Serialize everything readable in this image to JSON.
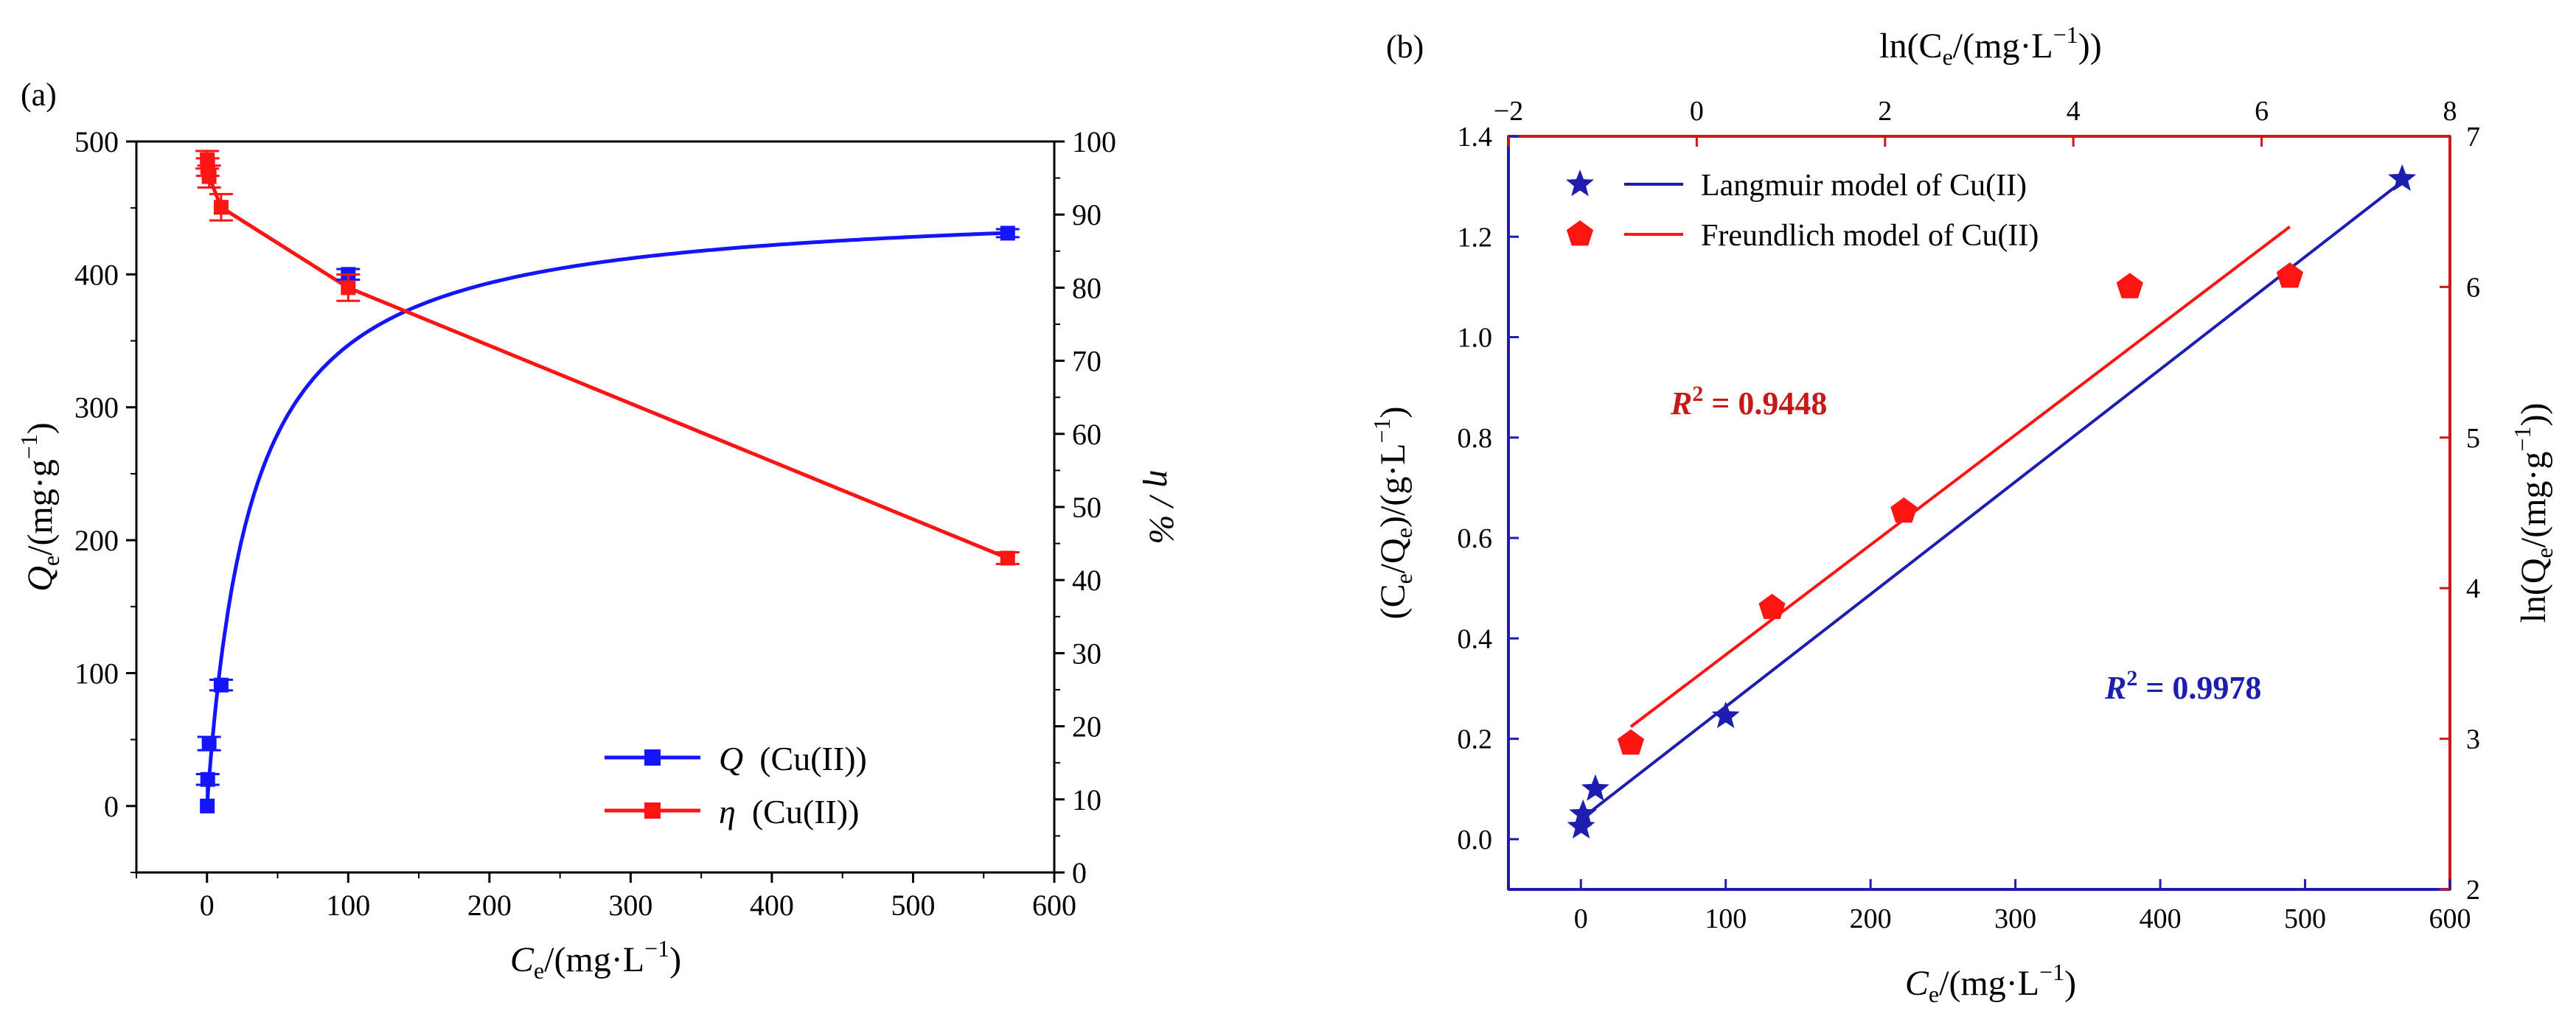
{
  "chart_data": [
    {
      "panel_label": "(a)",
      "type": "line",
      "xlabel": {
        "main": "C",
        "sub": "e",
        "rest": "/(mg·L",
        "sup": "−1",
        "close": ")"
      },
      "ylabel": {
        "main": "Q",
        "sub": "e",
        "rest": "/(mg·g",
        "sup": "−1",
        "close": ")"
      },
      "y2label": "η / %",
      "xlim": [
        -50,
        600
      ],
      "ylim": [
        -50,
        500
      ],
      "y2lim": [
        0,
        100
      ],
      "xticks": [
        "0",
        "100",
        "200",
        "300",
        "400",
        "500",
        "600"
      ],
      "yticks": [
        "0",
        "100",
        "200",
        "300",
        "400",
        "500"
      ],
      "y2ticks": [
        "0",
        "10",
        "20",
        "30",
        "40",
        "50",
        "60",
        "70",
        "80",
        "90",
        "100"
      ],
      "series": [
        {
          "name": "Q",
          "legend_symbol": "Q",
          "legend_text": "(Cu(II))",
          "axis": "left",
          "color": "#1414ff",
          "x": [
            0.2,
            0.5,
            1.5,
            10,
            100,
            567
          ],
          "y": [
            0,
            20,
            47,
            91,
            400,
            431
          ],
          "err": [
            0,
            4,
            5,
            4,
            4,
            3
          ]
        },
        {
          "name": "η",
          "legend_symbol": "η",
          "legend_text": "(Cu(II))",
          "axis": "right",
          "color": "#ff1414",
          "x": [
            0.2,
            0.5,
            1.5,
            10,
            100,
            567
          ],
          "y": [
            97.5,
            96.5,
            95.2,
            91,
            80,
            43
          ],
          "err": [
            1.2,
            1.2,
            1.5,
            1.8,
            1.8,
            0.8
          ]
        }
      ],
      "q_fit_curve": {
        "model": "Langmuir",
        "qmax": 455,
        "KL": 0.032
      }
    },
    {
      "panel_label": "(b)",
      "type": "scatter",
      "xlabel": {
        "main": "C",
        "sub": "e",
        "rest": "/(mg·L",
        "sup": "−1",
        "close": ")"
      },
      "ylabel": {
        "open": "(C",
        "sub1": "e",
        "mid": "/Q",
        "sub2": "e",
        "rest": ")/(g·L",
        "sup": "−1",
        "close": ")"
      },
      "x2label": {
        "open": "ln(C",
        "sub": "e",
        "rest": "/(mg·L",
        "sup": "−1",
        "close": "))"
      },
      "y2label": {
        "open": "ln(Q",
        "sub": "e",
        "rest": "/(mg·g",
        "sup": "−1",
        "close": "))"
      },
      "xlim": [
        -50,
        600
      ],
      "ylim": [
        -0.1,
        1.4
      ],
      "x2lim": [
        -2,
        8
      ],
      "y2lim": [
        2,
        7
      ],
      "xticks": [
        "0",
        "100",
        "200",
        "300",
        "400",
        "500",
        "600"
      ],
      "yticks": [
        "0.0",
        "0.2",
        "0.4",
        "0.6",
        "0.8",
        "1.0",
        "1.2",
        "1.4"
      ],
      "x2ticks": [
        "−2",
        "0",
        "2",
        "4",
        "6",
        "8"
      ],
      "y2ticks": [
        "2",
        "3",
        "4",
        "5",
        "6",
        "7"
      ],
      "series": [
        {
          "name": "Langmuir model of Cu(II)",
          "axis": "bottom-left",
          "marker": "star",
          "color": "#1d1db0",
          "x": [
            0.2,
            1.5,
            10,
            100,
            567
          ],
          "y": [
            0.025,
            0.05,
            0.1,
            0.245,
            1.315
          ],
          "fit_line": {
            "x": [
              0,
              567
            ],
            "y": [
              0.04,
              1.31
            ]
          },
          "r2_prefix": "R",
          "r2_sup": "2",
          "r2_value": " = 0.9978"
        },
        {
          "name": "Freundlich model of Cu(II)",
          "axis": "top-right",
          "marker": "pentagon",
          "color": "#ff1414",
          "x": [
            -0.7,
            0.8,
            2.2,
            4.6,
            6.3
          ],
          "y": [
            2.97,
            3.87,
            4.51,
            6.0,
            6.07
          ],
          "fit_line": {
            "x": [
              -0.7,
              6.3
            ],
            "y": [
              3.08,
              6.4
            ]
          },
          "r2_prefix": "R",
          "r2_sup": "2",
          "r2_value": " = 0.9448"
        }
      ]
    }
  ]
}
